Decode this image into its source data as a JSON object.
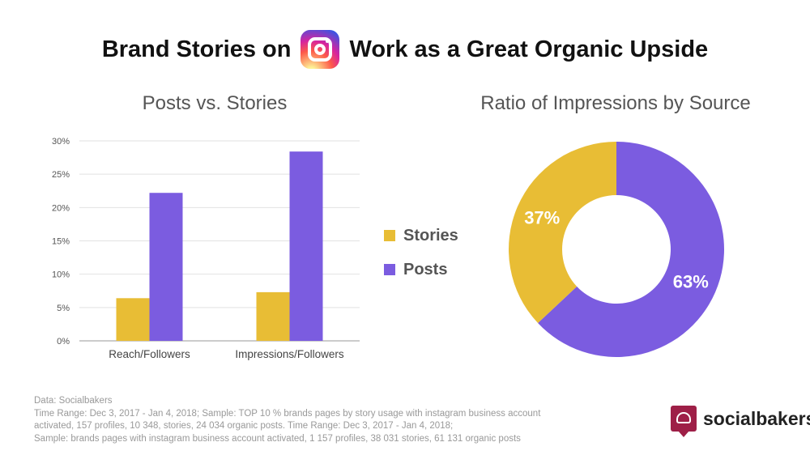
{
  "headline": {
    "before": "Brand Stories on",
    "logo_icon": "instagram-icon",
    "after": "Work as a Great Organic Upside"
  },
  "chart_data": [
    {
      "type": "bar",
      "title": "Posts vs. Stories",
      "categories": [
        "Reach/Followers",
        "Impressions/Followers"
      ],
      "series": [
        {
          "name": "Stories",
          "color": "#e8bd35",
          "values": [
            6.4,
            7.3
          ]
        },
        {
          "name": "Posts",
          "color": "#7b5ce0",
          "values": [
            22.2,
            28.4
          ]
        }
      ],
      "yticks": [
        "0%",
        "5%",
        "10%",
        "15%",
        "20%",
        "25%",
        "30%"
      ],
      "ylim": [
        0,
        30
      ],
      "grid": true,
      "legend": "right"
    },
    {
      "type": "pie",
      "title": "Ratio of Impressions by Source",
      "donut": true,
      "slices": [
        {
          "name": "Posts",
          "value": 63,
          "label": "63%",
          "color": "#7b5ce0"
        },
        {
          "name": "Stories",
          "value": 37,
          "label": "37%",
          "color": "#e8bd35"
        }
      ]
    }
  ],
  "legend": [
    {
      "label": "Stories",
      "color": "#e8bd35"
    },
    {
      "label": "Posts",
      "color": "#7b5ce0"
    }
  ],
  "footnote": [
    "Data: Socialbakers",
    "Time Range: Dec 3, 2017 - Jan 4, 2018; Sample: TOP 10 % brands pages by story usage with instagram business account",
    "activated, 157 profiles, 10 348, stories, 24 034 organic posts. Time Range: Dec 3, 2017 - Jan 4, 2018;",
    "Sample: brands pages with instagram business account activated, 1 157 profiles, 38 031 stories, 61 131 organic posts"
  ],
  "brand": {
    "name": "socialbakers",
    "icon": "chef-hat-icon",
    "color": "#9e1f47"
  }
}
